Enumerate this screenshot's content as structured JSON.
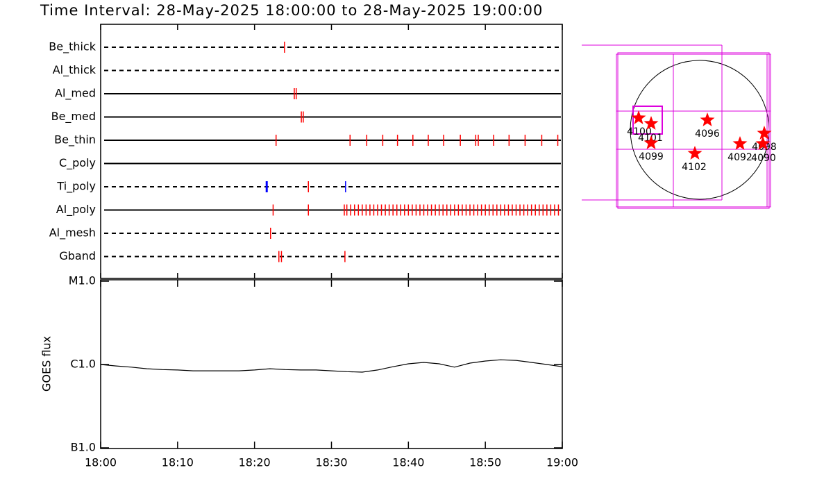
{
  "title": "Time Interval: 28-May-2025 18:00:00 to 28-May-2025 19:00:00",
  "chart_data": [
    {
      "type": "timeline",
      "xlim": [
        "18:00",
        "19:00"
      ],
      "series": [
        {
          "name": "Be_thick",
          "style": "dashed",
          "color": "#ff0000",
          "events": [
            "18:23:54"
          ]
        },
        {
          "name": "Al_thick",
          "style": "dashed",
          "color": "#ff0000",
          "events": []
        },
        {
          "name": "Al_med",
          "style": "solid",
          "color": "#ff0000",
          "events": [
            "18:25:10",
            "18:25:25"
          ]
        },
        {
          "name": "Be_med",
          "style": "solid",
          "color": "#ff0000",
          "events": [
            "18:26:05",
            "18:26:20"
          ]
        },
        {
          "name": "Be_thin",
          "style": "solid",
          "color": "#ff0000",
          "events": [
            "18:22:48",
            "18:32:25",
            "18:34:35",
            "18:36:40",
            "18:38:35",
            "18:40:35",
            "18:42:35",
            "18:44:35",
            "18:46:45",
            "18:48:45",
            "18:49:05",
            "18:51:05",
            "18:53:05",
            "18:55:10",
            "18:57:20",
            "18:59:25"
          ]
        },
        {
          "name": "C_poly",
          "style": "solid",
          "color": "#ff0000",
          "events": []
        },
        {
          "name": "Ti_poly",
          "style": "dashed",
          "color": "#ff0000",
          "events": [
            "18:21:35",
            "18:27:00",
            "18:31:50"
          ],
          "event_colors": [
            "#0000ff",
            "#ff0000",
            "#0000ff"
          ]
        },
        {
          "name": "Al_poly",
          "style": "solid",
          "color": "#ff0000",
          "events": [
            "18:22:25",
            "18:27:00",
            "18:31:40",
            "18:32:00",
            "18:32:30",
            "18:33:00",
            "18:33:30",
            "18:34:00",
            "18:34:30",
            "18:35:00",
            "18:35:30",
            "18:36:00",
            "18:36:30",
            "18:37:00",
            "18:37:30",
            "18:38:00",
            "18:38:30",
            "18:39:00",
            "18:39:30",
            "18:40:00",
            "18:40:30",
            "18:41:00",
            "18:41:30",
            "18:42:00",
            "18:42:30",
            "18:43:00",
            "18:43:30",
            "18:44:00",
            "18:44:30",
            "18:45:00",
            "18:45:30",
            "18:46:00",
            "18:46:30",
            "18:47:00",
            "18:47:30",
            "18:48:00",
            "18:48:30",
            "18:49:00",
            "18:49:30",
            "18:50:00",
            "18:50:30",
            "18:51:00",
            "18:51:30",
            "18:52:00",
            "18:52:30",
            "18:53:00",
            "18:53:30",
            "18:54:00",
            "18:54:30",
            "18:55:00",
            "18:55:30",
            "18:56:00",
            "18:56:30",
            "18:57:00",
            "18:57:30",
            "18:58:00",
            "18:58:30",
            "18:59:00",
            "18:59:30"
          ]
        },
        {
          "name": "Al_mesh",
          "style": "dashed",
          "color": "#ff0000",
          "events": [
            "18:22:05"
          ]
        },
        {
          "name": "Gband",
          "style": "dashed",
          "color": "#ff0000",
          "events": [
            "18:23:10",
            "18:23:30",
            "18:31:45"
          ]
        }
      ]
    },
    {
      "type": "line",
      "ylabel": "GOES flux",
      "log": true,
      "xlim": [
        "18:00",
        "19:00"
      ],
      "xticks": [
        "18:00",
        "18:10",
        "18:20",
        "18:30",
        "18:40",
        "18:50",
        "19:00"
      ],
      "ylim": [
        1e-07,
        1e-05
      ],
      "yticks": [
        {
          "value": 1e-07,
          "label": "B1.0"
        },
        {
          "value": 1e-06,
          "label": "C1.0"
        },
        {
          "value": 1e-05,
          "label": "M1.0"
        }
      ],
      "x": [
        "18:00",
        "18:02",
        "18:04",
        "18:06",
        "18:08",
        "18:10",
        "18:12",
        "18:14",
        "18:16",
        "18:18",
        "18:20",
        "18:22",
        "18:24",
        "18:26",
        "18:28",
        "18:30",
        "18:32",
        "18:34",
        "18:36",
        "18:38",
        "18:40",
        "18:42",
        "18:44",
        "18:46",
        "18:48",
        "18:50",
        "18:52",
        "18:54",
        "18:56",
        "18:58",
        "19:00"
      ],
      "series": [
        {
          "color": "#000000",
          "values": [
            1e-06,
            9.6e-07,
            9.3e-07,
            8.9e-07,
            8.7e-07,
            8.6e-07,
            8.4e-07,
            8.4e-07,
            8.4e-07,
            8.4e-07,
            8.6e-07,
            8.9e-07,
            8.7e-07,
            8.6e-07,
            8.6e-07,
            8.4e-07,
            8.2e-07,
            8.1e-07,
            8.6e-07,
            9.4e-07,
            1.02e-06,
            1.06e-06,
            1.02e-06,
            9.3e-07,
            1.04e-06,
            1.1e-06,
            1.14e-06,
            1.12e-06,
            1.06e-06,
            1e-06,
            9.4e-07
          ]
        }
      ]
    },
    {
      "type": "map",
      "labels": [
        "4100",
        "4101",
        "4099",
        "4096",
        "4102",
        "4092",
        "4098",
        "4090"
      ]
    }
  ]
}
